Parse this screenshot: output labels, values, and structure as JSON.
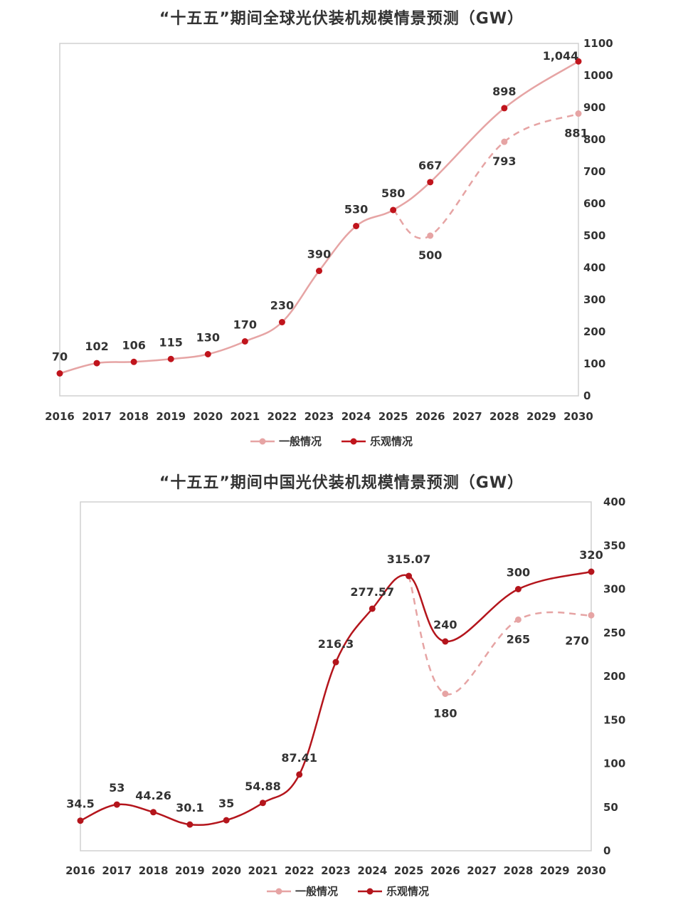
{
  "chart_data": [
    {
      "type": "line",
      "title": "“十五五”期间全球光伏装机规模情景预测（GW）",
      "x": [
        "2016",
        "2017",
        "2018",
        "2019",
        "2020",
        "2021",
        "2022",
        "2023",
        "2024",
        "2025",
        "2026",
        "2027",
        "2028",
        "2029",
        "2030"
      ],
      "y_ticks": [
        "0",
        "100",
        "200",
        "300",
        "400",
        "500",
        "600",
        "700",
        "800",
        "900",
        "1000",
        "1100"
      ],
      "ylim": [
        0,
        1100
      ],
      "y_axis_side": "right",
      "legend_position": "bottom-center",
      "grid": false,
      "series": [
        {
          "name": "一般情况",
          "color": "#e6a4a4",
          "line_style": "dashed",
          "points": [
            {
              "x": "2025",
              "y": 580
            },
            {
              "x": "2026",
              "y": 500,
              "label": "500"
            },
            {
              "x": "2028",
              "y": 793,
              "label": "793"
            },
            {
              "x": "2030",
              "y": 881,
              "label": "881"
            }
          ]
        },
        {
          "name": "乐观情况",
          "color": "#e6a4a4",
          "marker_color": "#c0141c",
          "line_style": "solid",
          "points": [
            {
              "x": "2016",
              "y": 70,
              "label": "70"
            },
            {
              "x": "2017",
              "y": 102,
              "label": "102"
            },
            {
              "x": "2018",
              "y": 106,
              "label": "106"
            },
            {
              "x": "2019",
              "y": 115,
              "label": "115"
            },
            {
              "x": "2020",
              "y": 130,
              "label": "130"
            },
            {
              "x": "2021",
              "y": 170,
              "label": "170"
            },
            {
              "x": "2022",
              "y": 230,
              "label": "230"
            },
            {
              "x": "2023",
              "y": 390,
              "label": "390"
            },
            {
              "x": "2024",
              "y": 530,
              "label": "530"
            },
            {
              "x": "2025",
              "y": 580,
              "label": "580"
            },
            {
              "x": "2026",
              "y": 667,
              "label": "667"
            },
            {
              "x": "2028",
              "y": 898,
              "label": "898"
            },
            {
              "x": "2030",
              "y": 1044,
              "label": "1,044"
            }
          ]
        }
      ]
    },
    {
      "type": "line",
      "title": "“十五五”期间中国光伏装机规模情景预测（GW）",
      "x": [
        "2016",
        "2017",
        "2018",
        "2019",
        "2020",
        "2021",
        "2022",
        "2023",
        "2024",
        "2025",
        "2026",
        "2027",
        "2028",
        "2029",
        "2030"
      ],
      "y_ticks": [
        "0",
        "50",
        "100",
        "150",
        "200",
        "250",
        "300",
        "350",
        "400"
      ],
      "ylim": [
        0,
        400
      ],
      "y_axis_side": "right",
      "legend_position": "bottom-center",
      "grid": false,
      "series": [
        {
          "name": "一般情况",
          "color": "#e6a4a4",
          "line_style": "dashed",
          "points": [
            {
              "x": "2025",
              "y": 315.07
            },
            {
              "x": "2026",
              "y": 180,
              "label": "180"
            },
            {
              "x": "2028",
              "y": 265,
              "label": "265"
            },
            {
              "x": "2030",
              "y": 270,
              "label": "270"
            }
          ]
        },
        {
          "name": "乐观情况",
          "color": "#b4151c",
          "marker_color": "#b4151c",
          "line_style": "solid",
          "points": [
            {
              "x": "2016",
              "y": 34.5,
              "label": "34.5"
            },
            {
              "x": "2017",
              "y": 53,
              "label": "53"
            },
            {
              "x": "2018",
              "y": 44.26,
              "label": "44.26"
            },
            {
              "x": "2019",
              "y": 30.1,
              "label": "30.1"
            },
            {
              "x": "2020",
              "y": 35,
              "label": "35"
            },
            {
              "x": "2021",
              "y": 54.88,
              "label": "54.88"
            },
            {
              "x": "2022",
              "y": 87.41,
              "label": "87.41"
            },
            {
              "x": "2023",
              "y": 216.3,
              "label": "216.3"
            },
            {
              "x": "2024",
              "y": 277.57,
              "label": "277.57"
            },
            {
              "x": "2025",
              "y": 315.07,
              "label": "315.07"
            },
            {
              "x": "2026",
              "y": 240,
              "label": "240"
            },
            {
              "x": "2028",
              "y": 300,
              "label": "300"
            },
            {
              "x": "2030",
              "y": 320,
              "label": "320"
            }
          ]
        }
      ]
    }
  ]
}
